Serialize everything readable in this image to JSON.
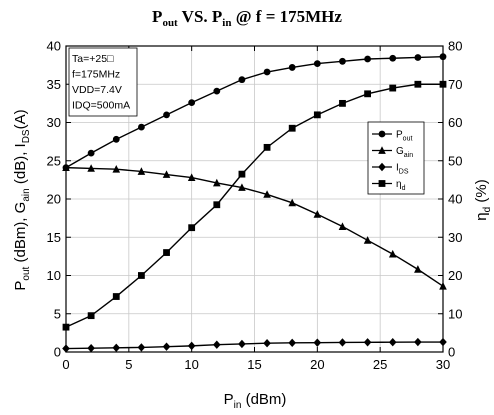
{
  "chart_data": {
    "type": "line",
    "title": {
      "main": "P",
      "main_sub": "out",
      "mid": " VS. P",
      "mid_sub": "in",
      "tail": " @ f = 175MHz"
    },
    "xlabel": {
      "main": "P",
      "sub": "in",
      "tail": " (dBm)"
    },
    "ylabel_left": {
      "p1": "P",
      "s1": "out",
      "p2": " (dBm), G",
      "s2": "ain",
      "p3": " (dB), I",
      "s3": "DS",
      "p4": "(A)"
    },
    "ylabel_right": {
      "p1": "η",
      "s1": "d",
      "p2": " (%)"
    },
    "xlim": [
      0,
      30
    ],
    "ylim_left": [
      0,
      40
    ],
    "ylim_right": [
      0,
      80
    ],
    "x_ticks": [
      "0",
      "5",
      "10",
      "15",
      "20",
      "25",
      "30"
    ],
    "y_left_ticks": [
      "0",
      "5",
      "10",
      "15",
      "20",
      "25",
      "30",
      "35",
      "40"
    ],
    "y_right_ticks": [
      "0",
      "10",
      "20",
      "30",
      "40",
      "50",
      "60",
      "70",
      "80"
    ],
    "grid": true,
    "annotation": [
      "Ta=+25□",
      "f=175MHz",
      "VDD=7.4V",
      "IDQ=500mA"
    ],
    "legend_position": "right",
    "x": [
      0,
      2,
      4,
      6,
      8,
      10,
      12,
      14,
      16,
      18,
      20,
      22,
      24,
      26,
      28,
      30
    ],
    "series": [
      {
        "name": "P",
        "name_sub": "out",
        "marker": "circle",
        "axis": "left",
        "values": [
          24.1,
          26.0,
          27.8,
          29.4,
          31.0,
          32.6,
          34.1,
          35.6,
          36.6,
          37.2,
          37.7,
          38.0,
          38.3,
          38.4,
          38.5,
          38.6
        ]
      },
      {
        "name": "G",
        "name_sub": "ain",
        "marker": "triangle",
        "axis": "left",
        "values": [
          24.1,
          24.0,
          23.9,
          23.6,
          23.2,
          22.8,
          22.1,
          21.5,
          20.6,
          19.5,
          18.0,
          16.4,
          14.6,
          12.8,
          10.8,
          8.6
        ]
      },
      {
        "name": "I",
        "name_sub": "DS",
        "marker": "diamond",
        "axis": "left",
        "values": [
          0.45,
          0.5,
          0.55,
          0.6,
          0.7,
          0.8,
          0.95,
          1.05,
          1.15,
          1.2,
          1.22,
          1.25,
          1.27,
          1.28,
          1.3,
          1.3
        ]
      },
      {
        "name": "η",
        "name_sub": "d",
        "marker": "square",
        "axis": "right",
        "values": [
          6.5,
          9.5,
          14.5,
          20.0,
          26.0,
          32.5,
          38.5,
          46.5,
          53.5,
          58.5,
          62.0,
          65.0,
          67.5,
          69.0,
          70.0,
          70.0
        ]
      }
    ]
  }
}
